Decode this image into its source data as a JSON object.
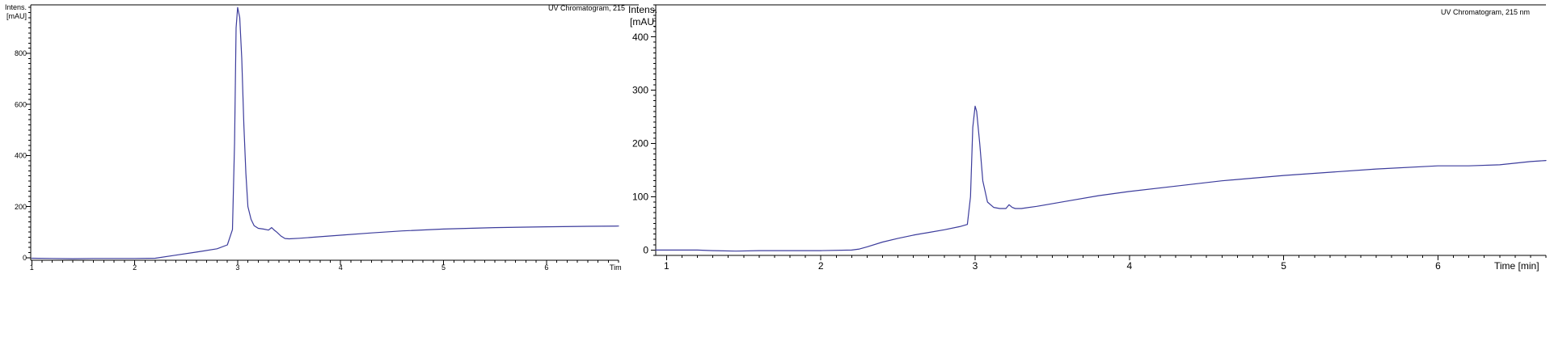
{
  "chart_data": [
    {
      "type": "line",
      "title": "UV Chromatogram, 215",
      "ylabel_line1": "Intens.",
      "ylabel_line2": "[mAU]",
      "xlabel": "Tim",
      "xlim": [
        0.99,
        6.7
      ],
      "ylim": [
        -10,
        990
      ],
      "x_ticks": [
        1,
        2,
        3,
        4,
        5,
        6
      ],
      "x_tick_labels": [
        "1",
        "2",
        "3",
        "4",
        "5",
        "6"
      ],
      "y_ticks": [
        0,
        200,
        400,
        600,
        800
      ],
      "y_tick_labels": [
        "0",
        "200",
        "400",
        "600",
        "800"
      ],
      "grid": false,
      "line_color": "#3c3c9c",
      "series": [
        {
          "x": [
            1.0,
            1.2,
            1.4,
            1.6,
            1.8,
            2.0,
            2.2,
            2.4,
            2.6,
            2.8,
            2.9,
            2.95,
            2.97,
            2.985,
            3.0,
            3.02,
            3.04,
            3.06,
            3.08,
            3.1,
            3.13,
            3.16,
            3.2,
            3.25,
            3.3,
            3.33,
            3.35,
            3.38,
            3.42,
            3.46,
            3.5,
            3.6,
            3.8,
            4.0,
            4.3,
            4.6,
            5.0,
            5.5,
            6.0,
            6.4,
            6.7
          ],
          "y": [
            -2,
            -3,
            -4,
            -3,
            -3,
            -3,
            -2,
            10,
            22,
            35,
            50,
            110,
            450,
            900,
            980,
            940,
            780,
            520,
            330,
            200,
            150,
            125,
            115,
            112,
            108,
            118,
            110,
            100,
            85,
            75,
            74,
            76,
            82,
            88,
            97,
            105,
            112,
            118,
            121,
            123,
            124
          ]
        }
      ]
    },
    {
      "type": "line",
      "title": "UV Chromatogram, 215 nm",
      "ylabel_line1": "Intens.",
      "ylabel_line2": "[mAU]",
      "xlabel": "Time [min]",
      "xlim": [
        0.93,
        6.7
      ],
      "ylim": [
        -10,
        460
      ],
      "x_ticks": [
        1,
        2,
        3,
        4,
        5,
        6
      ],
      "x_tick_labels": [
        "1",
        "2",
        "3",
        "4",
        "5",
        "6"
      ],
      "y_ticks": [
        0,
        100,
        200,
        300,
        400
      ],
      "y_tick_labels": [
        "0",
        "100",
        "200",
        "300",
        "400"
      ],
      "grid": false,
      "line_color": "#3c3c9c",
      "series": [
        {
          "x": [
            0.93,
            1.2,
            1.3,
            1.45,
            1.6,
            1.8,
            2.0,
            2.2,
            2.25,
            2.3,
            2.4,
            2.5,
            2.6,
            2.7,
            2.8,
            2.9,
            2.95,
            2.97,
            2.985,
            3.0,
            3.01,
            3.03,
            3.05,
            3.08,
            3.12,
            3.16,
            3.2,
            3.22,
            3.24,
            3.26,
            3.3,
            3.4,
            3.6,
            3.8,
            4.0,
            4.3,
            4.6,
            5.0,
            5.3,
            5.6,
            6.0,
            6.2,
            6.4,
            6.6,
            6.7
          ],
          "y": [
            0,
            0,
            -1,
            -2,
            -1,
            -1,
            -1,
            0,
            2,
            6,
            15,
            22,
            28,
            33,
            38,
            44,
            48,
            100,
            230,
            270,
            260,
            200,
            130,
            90,
            80,
            78,
            78,
            85,
            80,
            78,
            78,
            82,
            92,
            102,
            110,
            120,
            130,
            140,
            146,
            152,
            158,
            158,
            160,
            166,
            168
          ]
        }
      ]
    }
  ]
}
